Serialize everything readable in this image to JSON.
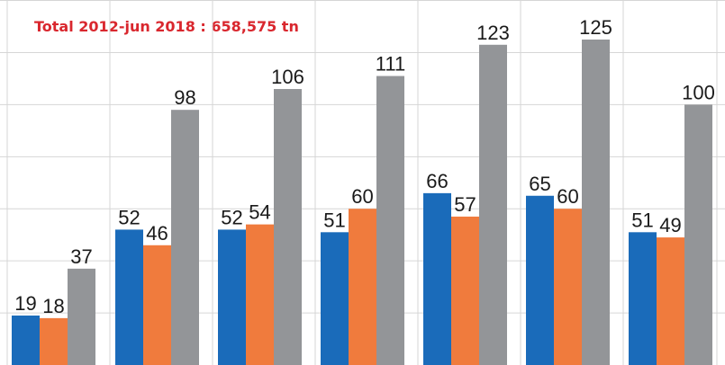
{
  "title": "Total 2012-jun 2018 : 658,575 tn",
  "colors": {
    "blue": "#1a6bba",
    "orange": "#f07b3d",
    "gray": "#939598",
    "title": "#d9272e",
    "grid": "#d6d6d6"
  },
  "chart_data": {
    "type": "bar",
    "title": "Total 2012-jun 2018 : 658,575 tn",
    "categories": [
      "",
      "",
      "",
      "",
      "",
      "",
      ""
    ],
    "series": [
      {
        "values": [
          19,
          52,
          52,
          51,
          66,
          65,
          51
        ]
      },
      {
        "values": [
          18,
          46,
          54,
          60,
          57,
          60,
          49
        ]
      },
      {
        "values": [
          37,
          98,
          106,
          111,
          123,
          125,
          100
        ]
      }
    ],
    "ylim": [
      0,
      125
    ],
    "grid": true
  }
}
